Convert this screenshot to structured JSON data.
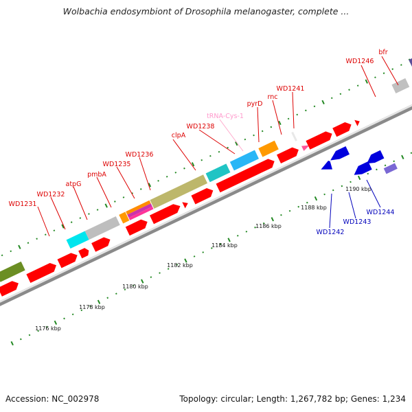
{
  "title": "Wolbachia endosymbiont of Drosophila melanogaster, complete ...",
  "footer": {
    "accession": "Accession: NC_002978",
    "summary": "Topology: circular; Length: 1,267,782 bp; Genes: 1,234"
  },
  "colors": {
    "forward_gene": "#ff0000",
    "reverse_gene": "#0000dd",
    "label_forward": "#dd0000",
    "label_reverse": "#0000bb",
    "label_trna": "#ff99cc",
    "backbone": "#888888",
    "tick": "#228822"
  },
  "kbp_labels": [
    "1176 kbp",
    "1178 kbp",
    "1180 kbp",
    "1182 kbp",
    "1184 kbp",
    "1186 kbp",
    "1188 kbp",
    "1190 kbp"
  ],
  "gene_labels": [
    {
      "name": "WD1231",
      "strand": "forward"
    },
    {
      "name": "WD1232",
      "strand": "forward"
    },
    {
      "name": "atpG",
      "strand": "forward"
    },
    {
      "name": "pmbA",
      "strand": "forward"
    },
    {
      "name": "WD1235",
      "strand": "forward"
    },
    {
      "name": "WD1236",
      "strand": "forward"
    },
    {
      "name": "clpA",
      "strand": "forward"
    },
    {
      "name": "WD1238",
      "strand": "forward"
    },
    {
      "name": "tRNA-Cys-1",
      "strand": "trna"
    },
    {
      "name": "pyrD",
      "strand": "forward"
    },
    {
      "name": "rnc",
      "strand": "forward"
    },
    {
      "name": "WD1241",
      "strand": "forward"
    },
    {
      "name": "WD1246",
      "strand": "forward"
    },
    {
      "name": "bfr",
      "strand": "forward"
    },
    {
      "name": "WD1242",
      "strand": "reverse"
    },
    {
      "name": "WD1243",
      "strand": "reverse"
    },
    {
      "name": "WD1244",
      "strand": "reverse"
    }
  ]
}
